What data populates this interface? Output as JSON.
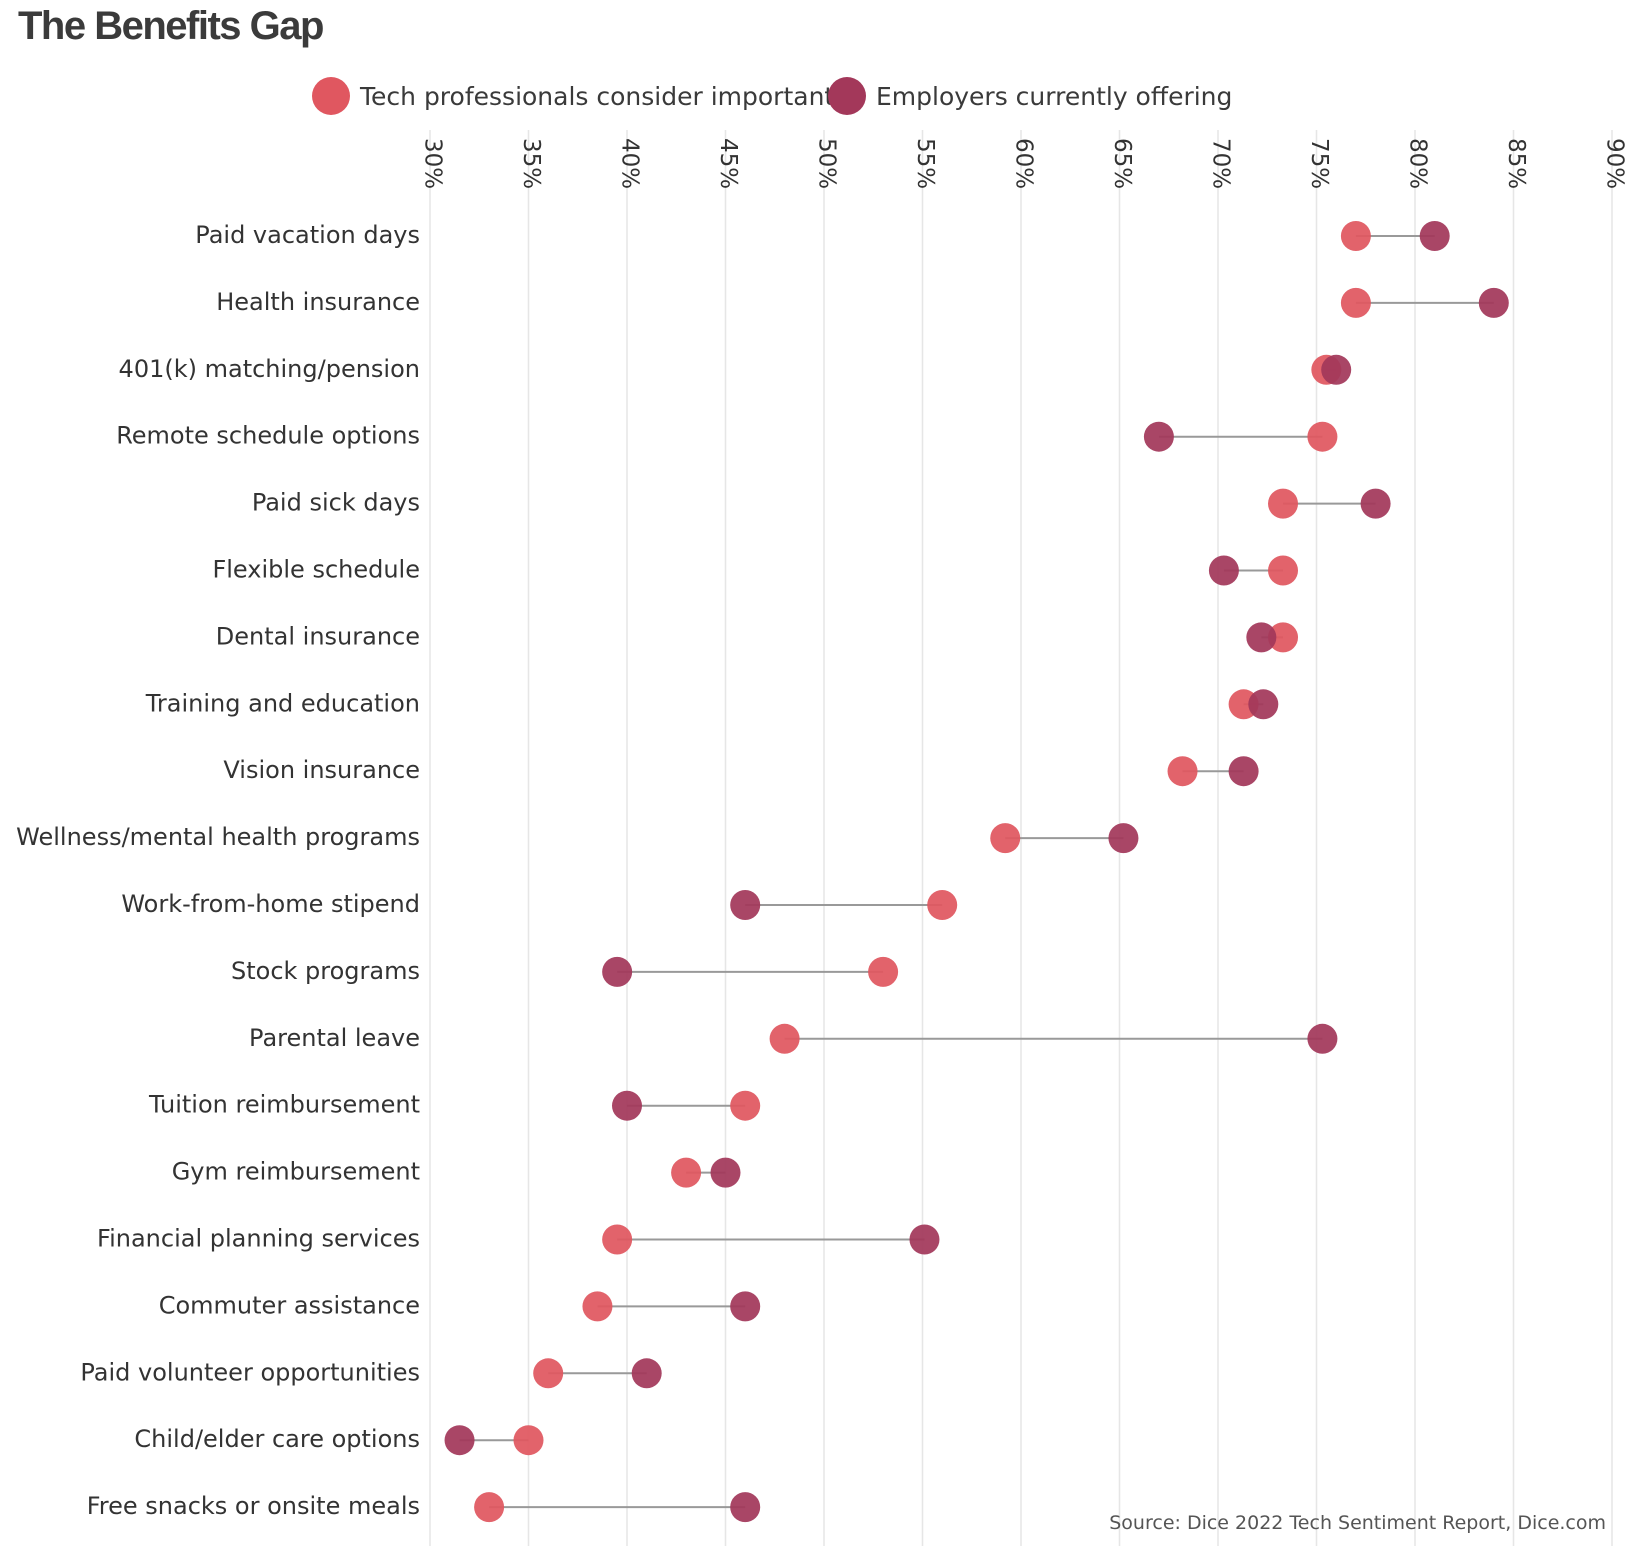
{
  "title": "The Benefits Gap",
  "legend": [
    {
      "label": "Tech professionals consider important",
      "color": "#e05760"
    },
    {
      "label": "Employers currently offering",
      "color": "#a3385a"
    }
  ],
  "source": "Source: Dice 2022 Tech Sentiment Report, Dice.com",
  "chart_data": {
    "type": "dot-plot",
    "xlim": [
      30,
      90
    ],
    "xticks": [
      30,
      35,
      40,
      45,
      50,
      55,
      60,
      65,
      70,
      75,
      80,
      85,
      90
    ],
    "xtick_labels": [
      "30%",
      "35%",
      "40%",
      "45%",
      "50%",
      "55%",
      "60%",
      "65%",
      "70%",
      "75%",
      "80%",
      "85%",
      "90%"
    ],
    "grid": true,
    "categories": [
      "Paid vacation days",
      "Health insurance",
      "401(k) matching/pension",
      "Remote schedule options",
      "Paid sick days",
      "Flexible schedule",
      "Dental insurance",
      "Training and education",
      "Vision insurance",
      "Wellness/mental health programs",
      "Work-from-home stipend",
      "Stock programs",
      "Parental leave",
      "Tuition reimbursement",
      "Gym reimbursement",
      "Financial planning services",
      "Commuter assistance",
      "Paid volunteer opportunities",
      "Child/elder care options",
      "Free snacks or onsite meals"
    ],
    "series": [
      {
        "name": "Tech professionals consider important",
        "color": "#e05760",
        "values": [
          77,
          77,
          75.5,
          75.3,
          73.3,
          73.3,
          73.3,
          71.3,
          68.2,
          59.2,
          56,
          53,
          48,
          46,
          43,
          39.5,
          38.5,
          36,
          35,
          33
        ]
      },
      {
        "name": "Employers currently offering",
        "color": "#a3385a",
        "values": [
          81,
          84,
          76,
          67,
          78,
          70.3,
          72.2,
          72.3,
          71.3,
          65.2,
          46,
          39.5,
          75.3,
          40,
          45,
          55.1,
          46,
          41,
          31.5,
          46
        ]
      }
    ]
  }
}
